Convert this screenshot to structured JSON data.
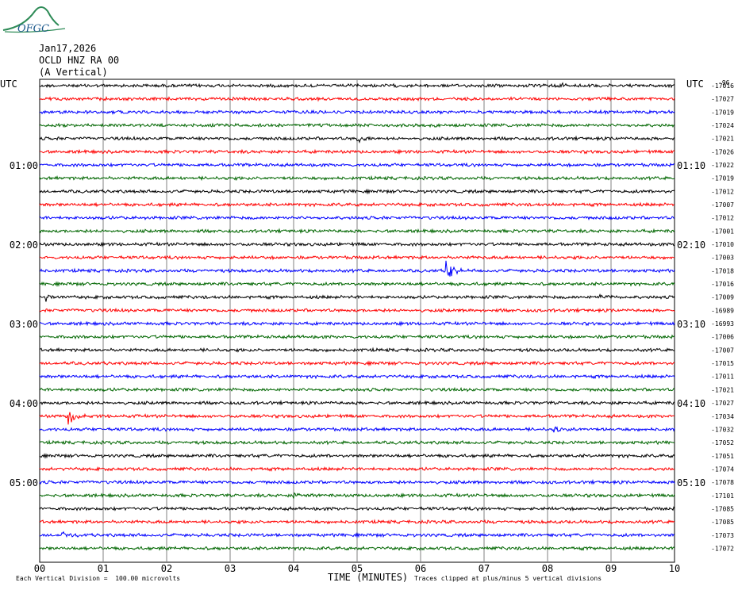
{
  "header": {
    "logo_text": "OFGC",
    "date": "Jan17,2026",
    "station": "OCLD HNZ RA 00",
    "component": "(A Vertical)"
  },
  "footer": {
    "scale_note": "Each Vertical Division =  100.00 microvolts",
    "xaxis_label": "TIME (MINUTES)",
    "clip_note": "Traces clipped at plus/minus 5 vertical divisions"
  },
  "colors": {
    "trace_cycle": [
      "#000000",
      "#ff0000",
      "#0000ff",
      "#006600"
    ],
    "grid": "#808080"
  },
  "chart_data": {
    "type": "line",
    "title": "",
    "xlabel": "TIME (MINUTES)",
    "ylabel": "",
    "xlim": [
      0,
      10
    ],
    "x_ticks": [
      "00",
      "01",
      "02",
      "03",
      "04",
      "05",
      "06",
      "07",
      "08",
      "09",
      "10"
    ],
    "left_axis_label": "UTC",
    "right_axis_label": "UTC",
    "left_time_labels": [
      {
        "row": 6,
        "text": "01:00"
      },
      {
        "row": 12,
        "text": "02:00"
      },
      {
        "row": 18,
        "text": "03:00"
      },
      {
        "row": 24,
        "text": "04:00"
      },
      {
        "row": 30,
        "text": "05:00"
      }
    ],
    "right_time_labels": [
      {
        "row": 6,
        "text": "01:10"
      },
      {
        "row": 12,
        "text": "02:10"
      },
      {
        "row": 18,
        "text": "03:10"
      },
      {
        "row": 24,
        "text": "04:10"
      },
      {
        "row": 30,
        "text": "05:10"
      }
    ],
    "trace_offset_header": "-96",
    "trace_offsets": [
      -17016,
      -17027,
      -17019,
      -17024,
      -17021,
      -17026,
      -17022,
      -17019,
      -17012,
      -17007,
      -17012,
      -17001,
      -17010,
      -17003,
      -17018,
      -17016,
      -17009,
      -16989,
      -16993,
      -17006,
      -17007,
      -17015,
      -17011,
      -17021,
      -17027,
      -17034,
      -17032,
      -17052,
      -17051,
      -17074,
      -17078,
      -17101,
      -17085,
      -17085,
      -17073,
      -17072
    ],
    "events": [
      {
        "row": 0,
        "minute": 8.2,
        "amp": 0.35
      },
      {
        "row": 4,
        "minute": 5.0,
        "amp": 0.45
      },
      {
        "row": 14,
        "minute": 6.4,
        "amp": 1.0
      },
      {
        "row": 16,
        "minute": 0.1,
        "amp": 0.35
      },
      {
        "row": 16,
        "minute": 8.8,
        "amp": 0.35
      },
      {
        "row": 25,
        "minute": 0.45,
        "amp": 1.1
      },
      {
        "row": 26,
        "minute": 8.1,
        "amp": 0.35
      },
      {
        "row": 34,
        "minute": 0.35,
        "amp": 0.35
      },
      {
        "row": 31,
        "minute": 4.0,
        "amp": 0.3
      }
    ],
    "grid": true
  }
}
